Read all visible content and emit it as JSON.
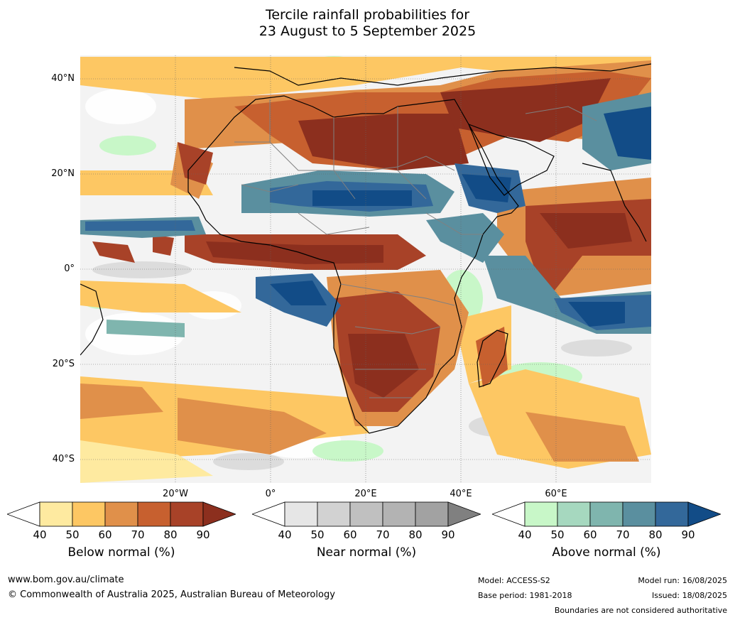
{
  "title": {
    "line1": "Tercile rainfall probabilities for",
    "line2": "23 August to 5 September 2025"
  },
  "map": {
    "lat_labels": [
      "40°N",
      "20°N",
      "0°",
      "20°S",
      "40°S"
    ],
    "lon_labels": [
      "20°W",
      "0°",
      "20°E",
      "40°E",
      "60°E"
    ]
  },
  "colorbars": [
    {
      "title": "Below normal (%)",
      "ticks": [
        "40",
        "50",
        "60",
        "70",
        "80",
        "90"
      ],
      "colors": [
        "#ffffff",
        "#feeaa0",
        "#fdc763",
        "#e0904a",
        "#c7602f",
        "#a84228",
        "#8c2f1e"
      ]
    },
    {
      "title": "Near normal (%)",
      "ticks": [
        "40",
        "50",
        "60",
        "70",
        "80",
        "90"
      ],
      "colors": [
        "#ffffff",
        "#e6e6e6",
        "#d2d2d2",
        "#c0c0c0",
        "#b3b3b3",
        "#a2a2a2",
        "#808080"
      ]
    },
    {
      "title": "Above normal (%)",
      "ticks": [
        "40",
        "50",
        "60",
        "70",
        "80",
        "90"
      ],
      "colors": [
        "#ffffff",
        "#c8f7c8",
        "#a6d8bf",
        "#7fb5ae",
        "#5a8f9f",
        "#33689a",
        "#124c87"
      ]
    }
  ],
  "footer": {
    "website": "www.bom.gov.au/climate",
    "copyright": "© Commonwealth of Australia 2025, Australian Bureau of Meteorology",
    "model": "Model: ACCESS-S2",
    "base_period": "Base period: 1981-2018",
    "model_run": "Model run: 16/08/2025",
    "issued": "Issued: 18/08/2025",
    "boundaries": "Boundaries are not considered authoritative"
  }
}
